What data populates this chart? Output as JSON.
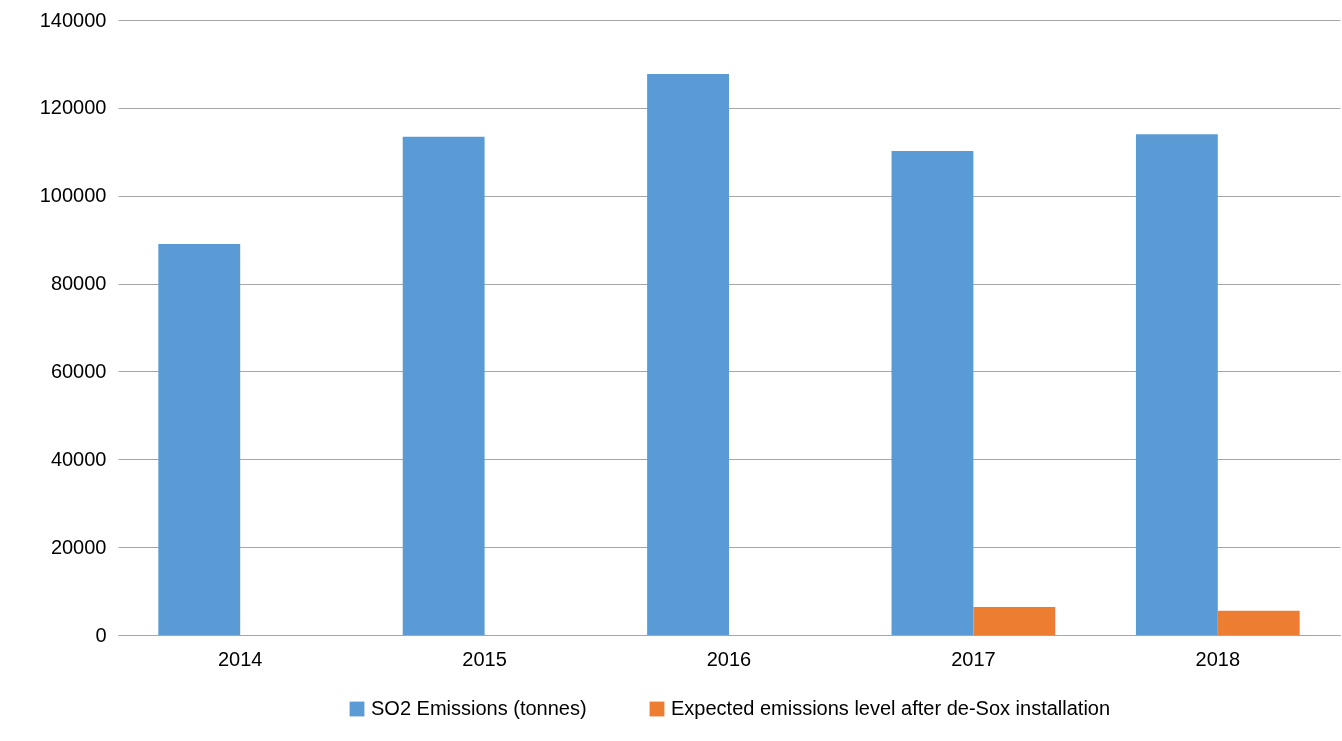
{
  "chart_data": {
    "type": "bar",
    "categories": [
      "2014",
      "2015",
      "2016",
      "2017",
      "2018"
    ],
    "series": [
      {
        "name": "SO2 Emissions (tonnes)",
        "color": "#5b9bd5",
        "values": [
          89000,
          113400,
          127700,
          110200,
          114000
        ]
      },
      {
        "name": "Expected emissions level after de-Sox installation",
        "color": "#ed7d31",
        "values": [
          null,
          null,
          null,
          6400,
          5500
        ]
      }
    ],
    "ylim": [
      0,
      140000
    ],
    "yticks": [
      0,
      20000,
      40000,
      60000,
      80000,
      100000,
      120000,
      140000
    ],
    "grid": "y",
    "legend": "bottom"
  }
}
